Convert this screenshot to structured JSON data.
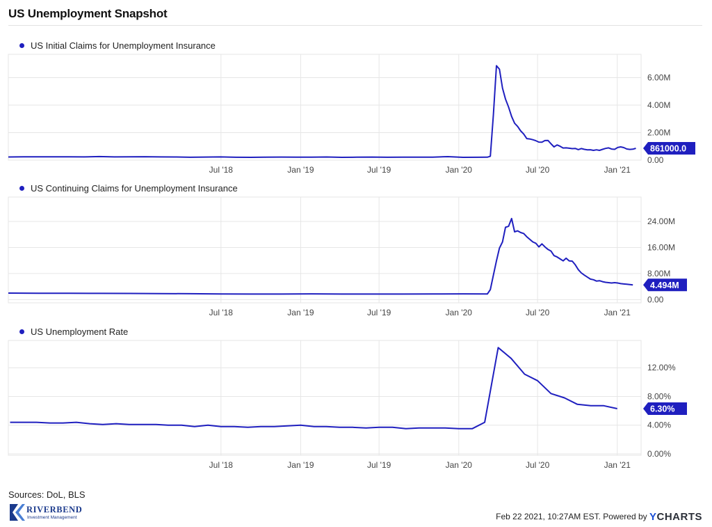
{
  "title": "US Unemployment Snapshot",
  "sources": "Sources: DoL, BLS",
  "footer": {
    "timestamp": "Feb 22 2021, 10:27AM EST.",
    "powered_by": "Powered by",
    "brand_y": "Y",
    "brand_rest": "CHARTS"
  },
  "logo": {
    "name": "RIVERBEND",
    "tagline": "Investment Management"
  },
  "colors": {
    "series": "#1f1fbf",
    "badge": "#1f1fbf",
    "grid": "#e6e6e6",
    "axis_text": "#444444"
  },
  "chart_data": [
    {
      "type": "line",
      "title": "",
      "legend_position": "top-left",
      "series": [
        {
          "name": "US Initial Claims for Unemployment Insurance",
          "x": [
            "2017-02-25",
            "2017-04-01",
            "2017-05-06",
            "2017-06-10",
            "2017-07-15",
            "2017-08-19",
            "2017-09-23",
            "2017-10-28",
            "2017-12-02",
            "2018-01-06",
            "2018-02-10",
            "2018-03-17",
            "2018-04-21",
            "2018-05-26",
            "2018-06-30",
            "2018-08-04",
            "2018-09-08",
            "2018-10-13",
            "2018-11-17",
            "2018-12-22",
            "2019-01-26",
            "2019-03-02",
            "2019-04-06",
            "2019-05-11",
            "2019-06-15",
            "2019-07-20",
            "2019-08-24",
            "2019-09-28",
            "2019-11-02",
            "2019-12-07",
            "2020-01-11",
            "2020-02-15",
            "2020-03-07",
            "2020-03-14",
            "2020-03-21",
            "2020-03-28",
            "2020-04-04",
            "2020-04-11",
            "2020-04-18",
            "2020-04-25",
            "2020-05-02",
            "2020-05-09",
            "2020-05-16",
            "2020-05-23",
            "2020-05-30",
            "2020-06-06",
            "2020-06-13",
            "2020-06-20",
            "2020-06-27",
            "2020-07-04",
            "2020-07-11",
            "2020-07-18",
            "2020-07-25",
            "2020-08-01",
            "2020-08-08",
            "2020-08-15",
            "2020-08-22",
            "2020-08-29",
            "2020-09-05",
            "2020-09-12",
            "2020-09-19",
            "2020-09-26",
            "2020-10-03",
            "2020-10-10",
            "2020-10-17",
            "2020-10-24",
            "2020-10-31",
            "2020-11-07",
            "2020-11-14",
            "2020-11-21",
            "2020-11-28",
            "2020-12-05",
            "2020-12-12",
            "2020-12-19",
            "2020-12-26",
            "2021-01-02",
            "2021-01-09",
            "2021-01-16",
            "2021-01-23",
            "2021-01-30",
            "2021-02-06",
            "2021-02-13"
          ],
          "values": [
            227000,
            236000,
            238000,
            243000,
            236000,
            234000,
            260000,
            233000,
            236000,
            250000,
            231000,
            227000,
            209000,
            221000,
            231000,
            208000,
            203000,
            212000,
            224000,
            214000,
            220000,
            226000,
            202000,
            212000,
            222000,
            208000,
            214000,
            214000,
            218000,
            252000,
            205000,
            210000,
            211000,
            282000,
            3307000,
            6867000,
            6615000,
            5237000,
            4442000,
            3867000,
            3176000,
            2687000,
            2446000,
            2126000,
            1897000,
            1566000,
            1540000,
            1482000,
            1413000,
            1310000,
            1307000,
            1422000,
            1435000,
            1191000,
            963000,
            1104000,
            1006000,
            881000,
            893000,
            866000,
            837000,
            849000,
            767000,
            842000,
            787000,
            751000,
            757000,
            709000,
            748000,
            711000,
            787000,
            853000,
            892000,
            806000,
            787000,
            922000,
            965000,
            914000,
            812000,
            779000,
            793000,
            861000
          ],
          "end_label": "861000.0"
        }
      ],
      "y_ticks": [
        "0.00",
        "2.00M",
        "4.00M",
        "6.00M"
      ],
      "y_tick_values": [
        0,
        2000000,
        4000000,
        6000000
      ],
      "ylim": [
        0,
        7700000
      ],
      "x_tick_labels": [
        "Jul '18",
        "Jan '19",
        "Jul '19",
        "Jan '20",
        "Jul '20",
        "Jan '21"
      ],
      "x_tick_dates": [
        "2018-07-01",
        "2019-01-01",
        "2019-07-01",
        "2020-01-01",
        "2020-07-01",
        "2021-01-01"
      ],
      "xlim": [
        "2017-02-25",
        "2021-02-25"
      ],
      "grid": true
    },
    {
      "type": "line",
      "title": "",
      "legend_position": "top-left",
      "series": [
        {
          "name": "US Continuing Claims for Unemployment Insurance",
          "x": [
            "2017-02-25",
            "2017-05-06",
            "2017-07-15",
            "2017-09-23",
            "2017-12-02",
            "2018-02-10",
            "2018-04-21",
            "2018-06-30",
            "2018-09-08",
            "2018-11-17",
            "2019-01-26",
            "2019-04-06",
            "2019-06-15",
            "2019-08-24",
            "2019-11-02",
            "2020-01-11",
            "2020-03-07",
            "2020-03-14",
            "2020-03-21",
            "2020-03-28",
            "2020-04-04",
            "2020-04-11",
            "2020-04-18",
            "2020-04-25",
            "2020-05-02",
            "2020-05-09",
            "2020-05-16",
            "2020-05-23",
            "2020-05-30",
            "2020-06-06",
            "2020-06-13",
            "2020-06-20",
            "2020-06-27",
            "2020-07-04",
            "2020-07-11",
            "2020-07-18",
            "2020-07-25",
            "2020-08-01",
            "2020-08-08",
            "2020-08-15",
            "2020-08-22",
            "2020-08-29",
            "2020-09-05",
            "2020-09-12",
            "2020-09-19",
            "2020-09-26",
            "2020-10-03",
            "2020-10-10",
            "2020-10-17",
            "2020-10-24",
            "2020-10-31",
            "2020-11-07",
            "2020-11-14",
            "2020-11-21",
            "2020-11-28",
            "2020-12-05",
            "2020-12-12",
            "2020-12-19",
            "2020-12-26",
            "2021-01-02",
            "2021-01-09",
            "2021-01-16",
            "2021-01-23",
            "2021-01-30",
            "2021-02-06"
          ],
          "values": [
            2000000,
            1950000,
            1930000,
            1900000,
            1880000,
            1850000,
            1800000,
            1740000,
            1690000,
            1690000,
            1750000,
            1700000,
            1690000,
            1700000,
            1710000,
            1760000,
            1720000,
            3060000,
            7500000,
            11900000,
            15800000,
            17700000,
            22200000,
            22500000,
            24900000,
            20800000,
            21100000,
            20600000,
            20300000,
            19300000,
            18500000,
            17700000,
            17300000,
            16200000,
            17100000,
            16200000,
            15400000,
            14900000,
            13500000,
            13100000,
            12500000,
            11900000,
            12700000,
            11900000,
            11800000,
            10700000,
            9200000,
            8200000,
            7500000,
            6900000,
            6300000,
            6100000,
            5700000,
            5800000,
            5500000,
            5300000,
            5200000,
            5100000,
            5200000,
            5100000,
            4900000,
            4800000,
            4700000,
            4600000,
            4494000
          ],
          "end_label": "4.494M"
        }
      ],
      "y_ticks": [
        "0.00",
        "8.00M",
        "16.00M",
        "24.00M"
      ],
      "y_tick_values": [
        0,
        8000000,
        16000000,
        24000000
      ],
      "ylim": [
        -1000000,
        31500000
      ],
      "x_tick_labels": [
        "Jul '18",
        "Jan '19",
        "Jul '19",
        "Jan '20",
        "Jul '20",
        "Jan '21"
      ],
      "x_tick_dates": [
        "2018-07-01",
        "2019-01-01",
        "2019-07-01",
        "2020-01-01",
        "2020-07-01",
        "2021-01-01"
      ],
      "xlim": [
        "2017-02-25",
        "2021-02-25"
      ],
      "grid": true
    },
    {
      "type": "line",
      "title": "",
      "legend_position": "top-left",
      "series": [
        {
          "name": "US Unemployment Rate",
          "x": [
            "2017-03-01",
            "2017-04-01",
            "2017-05-01",
            "2017-06-01",
            "2017-07-01",
            "2017-08-01",
            "2017-09-01",
            "2017-10-01",
            "2017-11-01",
            "2017-12-01",
            "2018-01-01",
            "2018-02-01",
            "2018-03-01",
            "2018-04-01",
            "2018-05-01",
            "2018-06-01",
            "2018-07-01",
            "2018-08-01",
            "2018-09-01",
            "2018-10-01",
            "2018-11-01",
            "2018-12-01",
            "2019-01-01",
            "2019-02-01",
            "2019-03-01",
            "2019-04-01",
            "2019-05-01",
            "2019-06-01",
            "2019-07-01",
            "2019-08-01",
            "2019-09-01",
            "2019-10-01",
            "2019-11-01",
            "2019-12-01",
            "2020-01-01",
            "2020-02-01",
            "2020-03-01",
            "2020-04-01",
            "2020-05-01",
            "2020-06-01",
            "2020-07-01",
            "2020-08-01",
            "2020-09-01",
            "2020-10-01",
            "2020-11-01",
            "2020-12-01",
            "2021-01-01"
          ],
          "values": [
            4.4,
            4.4,
            4.4,
            4.3,
            4.3,
            4.4,
            4.2,
            4.1,
            4.2,
            4.1,
            4.1,
            4.1,
            4.0,
            4.0,
            3.8,
            4.0,
            3.8,
            3.8,
            3.7,
            3.8,
            3.8,
            3.9,
            4.0,
            3.8,
            3.8,
            3.7,
            3.7,
            3.6,
            3.7,
            3.7,
            3.5,
            3.6,
            3.6,
            3.6,
            3.5,
            3.5,
            4.4,
            14.8,
            13.3,
            11.1,
            10.2,
            8.4,
            7.8,
            6.9,
            6.7,
            6.7,
            6.3
          ],
          "end_label": "6.30%"
        }
      ],
      "y_ticks": [
        "0.00%",
        "4.00%",
        "8.00%",
        "12.00%"
      ],
      "y_tick_values": [
        0,
        4,
        8,
        12
      ],
      "ylim": [
        -0.2,
        15.8
      ],
      "x_tick_labels": [
        "Jul '18",
        "Jan '19",
        "Jul '19",
        "Jan '20",
        "Jul '20",
        "Jan '21"
      ],
      "x_tick_dates": [
        "2018-07-01",
        "2019-01-01",
        "2019-07-01",
        "2020-01-01",
        "2020-07-01",
        "2021-01-01"
      ],
      "xlim": [
        "2017-02-25",
        "2021-02-25"
      ],
      "grid": true
    }
  ]
}
